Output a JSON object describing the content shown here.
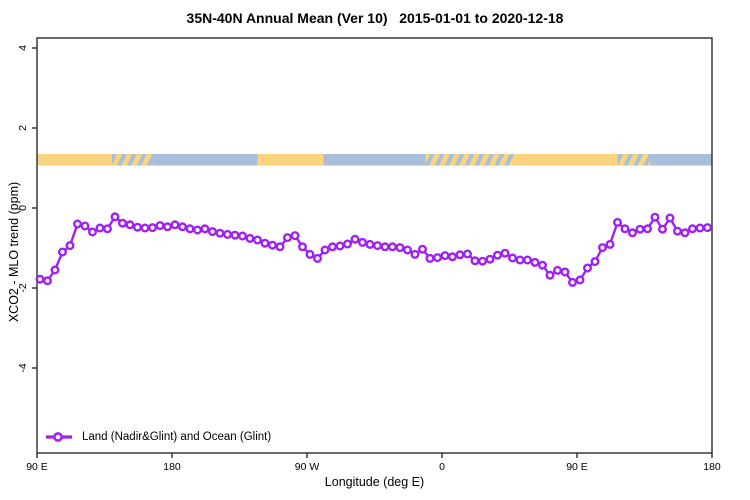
{
  "title": "35N-40N Annual Mean (Ver 10)   2015-01-01 to 2020-12-18",
  "legend": {
    "label": "Land (Nadir&Glint) and Ocean (Glint)",
    "marker": "open-circle-on-line"
  },
  "colors": {
    "line": "#A020F0",
    "marker_fill": "#ffffff",
    "land_band": "#FAD47E",
    "ocean_band": "#A7BFDB",
    "axis": "#2b2b2b",
    "text": "#000000"
  },
  "surface_band": {
    "top_ppm": 1.35,
    "bottom_ppm": 1.06,
    "segments": [
      {
        "start_deg": 0,
        "end_deg": 50,
        "type": "land"
      },
      {
        "start_deg": 50,
        "end_deg": 77,
        "type": "mixed"
      },
      {
        "start_deg": 77,
        "end_deg": 147,
        "type": "ocean"
      },
      {
        "start_deg": 147,
        "end_deg": 191,
        "type": "land"
      },
      {
        "start_deg": 191,
        "end_deg": 259,
        "type": "ocean"
      },
      {
        "start_deg": 259,
        "end_deg": 319,
        "type": "mixed"
      },
      {
        "start_deg": 319,
        "end_deg": 387,
        "type": "land"
      },
      {
        "start_deg": 387,
        "end_deg": 409,
        "type": "mixed"
      },
      {
        "start_deg": 409,
        "end_deg": 450,
        "type": "ocean"
      }
    ]
  },
  "chart_data": {
    "type": "line",
    "title": "35N-40N Annual Mean (Ver 10)   2015-01-01 to 2020-12-18",
    "xlabel": "Longitude (deg E)",
    "ylabel": "XCO2 - MLO trend (ppm)",
    "x_axis": {
      "range_deg": [
        0,
        450
      ],
      "start_longitude": "90 E",
      "tick_positions_deg": [
        0,
        90,
        180,
        270,
        360,
        450
      ],
      "tick_labels": [
        "90 E",
        "180",
        "90 W",
        "0",
        "90 E",
        "180"
      ]
    },
    "y_axis": {
      "ticks": [
        4,
        2,
        0,
        -2,
        -4
      ],
      "tick_labels": [
        "4",
        "2",
        "0",
        "-2",
        "-4"
      ],
      "ylim": [
        -6.1,
        4.25
      ],
      "grid": false
    },
    "legend_position": "bottom-left-inside",
    "x_start_deg": 2,
    "x_step_deg": 5,
    "series": [
      {
        "name": "Land (Nadir&Glint) and Ocean (Glint)",
        "values": [
          -1.78,
          -1.82,
          -1.55,
          -1.1,
          -0.94,
          -0.4,
          -0.45,
          -0.6,
          -0.5,
          -0.52,
          -0.22,
          -0.38,
          -0.42,
          -0.48,
          -0.5,
          -0.49,
          -0.44,
          -0.47,
          -0.42,
          -0.47,
          -0.52,
          -0.55,
          -0.52,
          -0.59,
          -0.63,
          -0.66,
          -0.68,
          -0.7,
          -0.76,
          -0.8,
          -0.88,
          -0.93,
          -0.97,
          -0.74,
          -0.69,
          -0.97,
          -1.16,
          -1.26,
          -1.05,
          -0.97,
          -0.95,
          -0.9,
          -0.78,
          -0.86,
          -0.91,
          -0.94,
          -0.97,
          -0.97,
          -0.99,
          -1.05,
          -1.16,
          -1.03,
          -1.26,
          -1.24,
          -1.19,
          -1.22,
          -1.17,
          -1.15,
          -1.32,
          -1.33,
          -1.28,
          -1.18,
          -1.13,
          -1.25,
          -1.3,
          -1.3,
          -1.36,
          -1.43,
          -1.68,
          -1.56,
          -1.6,
          -1.86,
          -1.8,
          -1.5,
          -1.34,
          -0.99,
          -0.91,
          -0.36,
          -0.52,
          -0.62,
          -0.53,
          -0.52,
          -0.23,
          -0.53,
          -0.25,
          -0.58,
          -0.62,
          -0.52,
          -0.5,
          -0.49
        ]
      }
    ]
  }
}
